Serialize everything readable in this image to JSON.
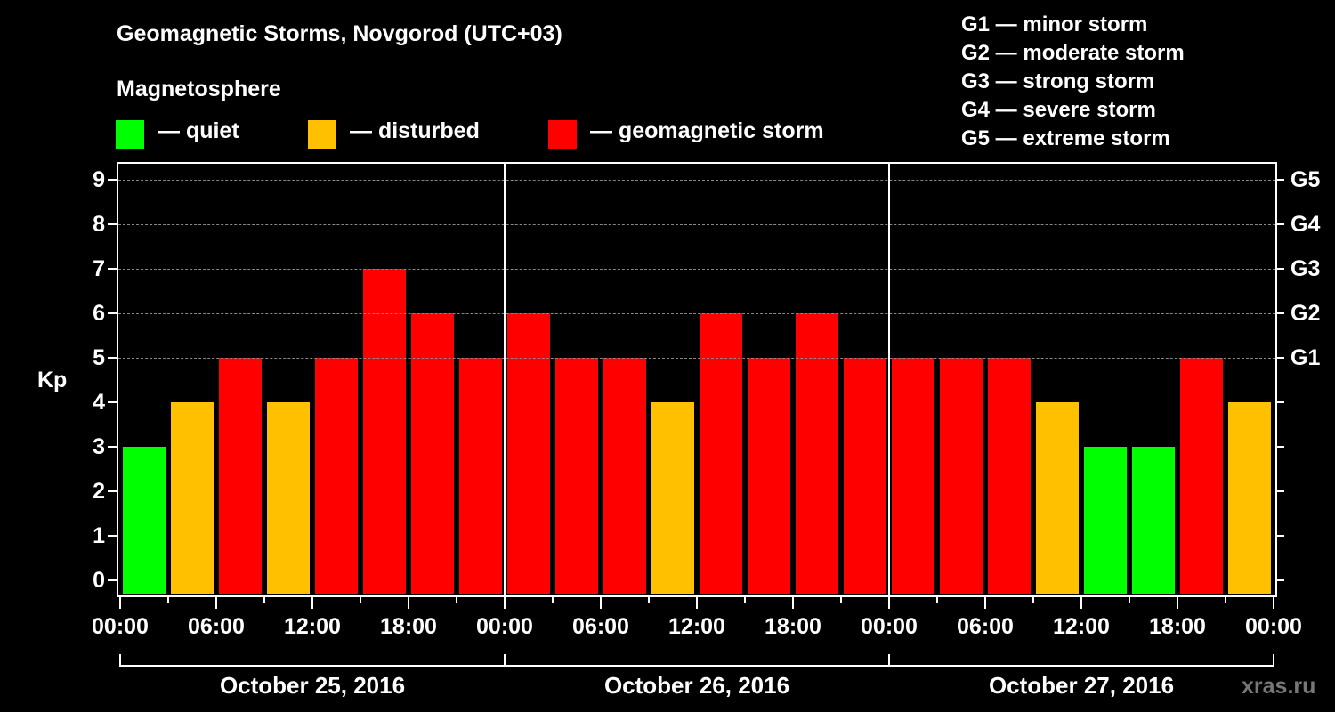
{
  "header": {
    "title": "Geomagnetic Storms, Novgorod (UTC+03)",
    "subtitle": "Magnetosphere"
  },
  "legend": [
    {
      "label": "— quiet",
      "color": "#00ff00"
    },
    {
      "label": "— disturbed",
      "color": "#ffc000"
    },
    {
      "label": "— geomagnetic storm",
      "color": "#ff0000"
    }
  ],
  "g_scale": [
    "G1 — minor storm",
    "G2 — moderate storm",
    "G3 — strong storm",
    "G4 — severe storm",
    "G5 — extreme storm"
  ],
  "colors": {
    "quiet": "#00ff00",
    "disturbed": "#ffc000",
    "storm": "#ff0000",
    "background": "#000000",
    "grid": "#888888"
  },
  "watermark": "xras.ru",
  "chart_data": {
    "type": "bar",
    "title": "Geomagnetic Storms, Novgorod (UTC+03)",
    "ylabel": "Kp",
    "xlabel": "",
    "ylim": [
      0,
      9
    ],
    "yticks": [
      0,
      1,
      2,
      3,
      4,
      5,
      6,
      7,
      8,
      9
    ],
    "right_axis_labels": {
      "5": "G1",
      "6": "G2",
      "7": "G3",
      "8": "G4",
      "9": "G5"
    },
    "grid": "horizontal dashed at Kp 5-9",
    "xtick_labels": [
      "00:00",
      "06:00",
      "12:00",
      "18:00",
      "00:00",
      "06:00",
      "12:00",
      "18:00",
      "00:00",
      "06:00",
      "12:00",
      "18:00",
      "00:00"
    ],
    "days": [
      "October 25, 2016",
      "October 26, 2016",
      "October 27, 2016"
    ],
    "interval_hours": 3,
    "categories": [
      "Oct 25 00-03",
      "Oct 25 03-06",
      "Oct 25 06-09",
      "Oct 25 09-12",
      "Oct 25 12-15",
      "Oct 25 15-18",
      "Oct 25 18-21",
      "Oct 25 21-24",
      "Oct 26 00-03",
      "Oct 26 03-06",
      "Oct 26 06-09",
      "Oct 26 09-12",
      "Oct 26 12-15",
      "Oct 26 15-18",
      "Oct 26 18-21",
      "Oct 26 21-24",
      "Oct 27 00-03",
      "Oct 27 03-06",
      "Oct 27 06-09",
      "Oct 27 09-12",
      "Oct 27 12-15",
      "Oct 27 15-18",
      "Oct 27 18-21",
      "Oct 27 21-24"
    ],
    "values": [
      3,
      4,
      5,
      4,
      5,
      7,
      6,
      5,
      6,
      5,
      5,
      4,
      6,
      5,
      6,
      5,
      5,
      5,
      5,
      4,
      3,
      3,
      5,
      4
    ],
    "status": [
      "quiet",
      "disturbed",
      "storm",
      "disturbed",
      "storm",
      "storm",
      "storm",
      "storm",
      "storm",
      "storm",
      "storm",
      "disturbed",
      "storm",
      "storm",
      "storm",
      "storm",
      "storm",
      "storm",
      "storm",
      "disturbed",
      "quiet",
      "quiet",
      "storm",
      "disturbed"
    ],
    "legend": [
      "quiet",
      "disturbed",
      "geomagnetic storm"
    ]
  }
}
